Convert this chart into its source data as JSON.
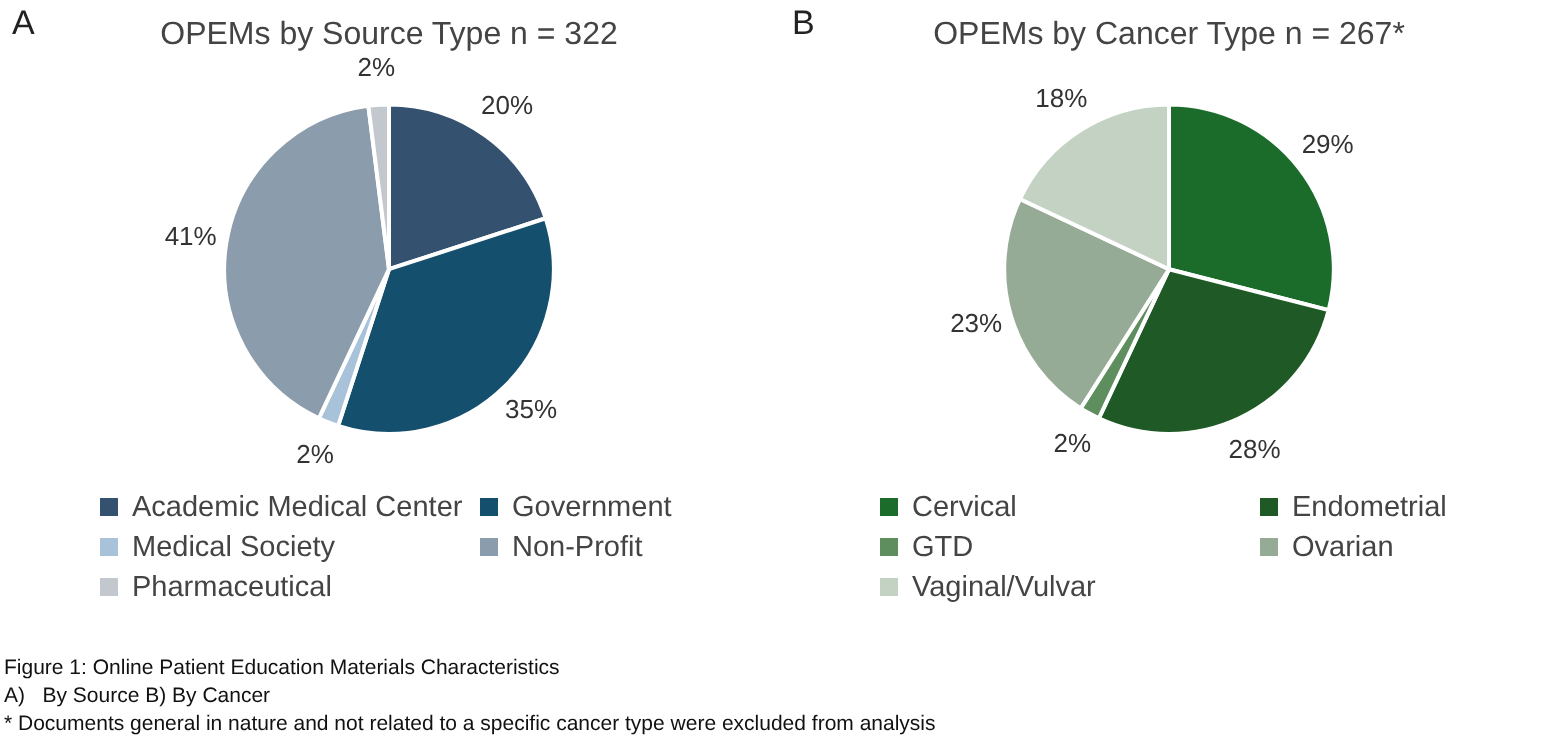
{
  "chart_data": [
    {
      "type": "pie",
      "title": "OPEMs by Source Type n = 322",
      "categories": [
        "Academic Medical Center",
        "Government",
        "Medical Society",
        "Non-Profit",
        "Pharmaceutical"
      ],
      "values": [
        20,
        35,
        2,
        41,
        2
      ],
      "value_labels": [
        "20%",
        "35%",
        "2%",
        "41%",
        "2%"
      ],
      "colors": [
        "#34526f",
        "#14506e",
        "#a8c2da",
        "#8b9cac",
        "#c2c8ce"
      ],
      "legend": "bottom",
      "annotations": [
        "A",
        "Figure 1: Online Patient Education Materials Characteristics",
        "A)   By Source B) By Cancer",
        "* Documents general in nature and not related to a specific cancer type were excluded from analysis"
      ]
    },
    {
      "type": "pie",
      "title": "OPEMs by Cancer Type n = 267*",
      "categories": [
        "Cervical",
        "Endometrial",
        "GTD",
        "Ovarian",
        "Vaginal/Vulvar"
      ],
      "values": [
        29,
        28,
        2,
        23,
        18
      ],
      "value_labels": [
        "29%",
        "28%",
        "2%",
        "23%",
        "18%"
      ],
      "colors": [
        "#1b6b2b",
        "#1f5a26",
        "#5e8e5e",
        "#96ab96",
        "#c4d2c4"
      ],
      "legend": "bottom",
      "annotations": [
        "B"
      ]
    }
  ]
}
